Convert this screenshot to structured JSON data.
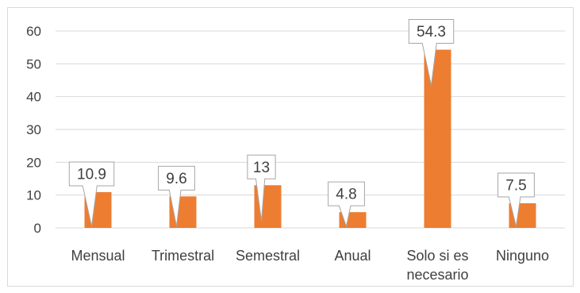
{
  "chart_data": {
    "type": "bar",
    "categories": [
      "Mensual",
      "Trimestral",
      "Semestral",
      "Anual",
      "Solo si es necesario",
      "Ninguno"
    ],
    "category_lines": [
      [
        "Mensual"
      ],
      [
        "Trimestral"
      ],
      [
        "Semestral"
      ],
      [
        "Anual"
      ],
      [
        "Solo si es",
        "necesario"
      ],
      [
        "Ninguno"
      ]
    ],
    "values": [
      10.9,
      9.6,
      13,
      4.8,
      54.3,
      7.5
    ],
    "data_labels": [
      "10.9",
      "9.6",
      "13",
      "4.8",
      "54.3",
      "7.5"
    ],
    "ylim": [
      0,
      60
    ],
    "yticks": [
      0,
      10,
      20,
      30,
      40,
      50,
      60
    ],
    "grid": true,
    "legend": "none",
    "title": "",
    "xlabel": "",
    "ylabel": "",
    "colors": {
      "bar": "#ED7D31",
      "grid": "#d9d9d9",
      "callout_border": "#a6a6a6",
      "text": "#404040"
    }
  }
}
